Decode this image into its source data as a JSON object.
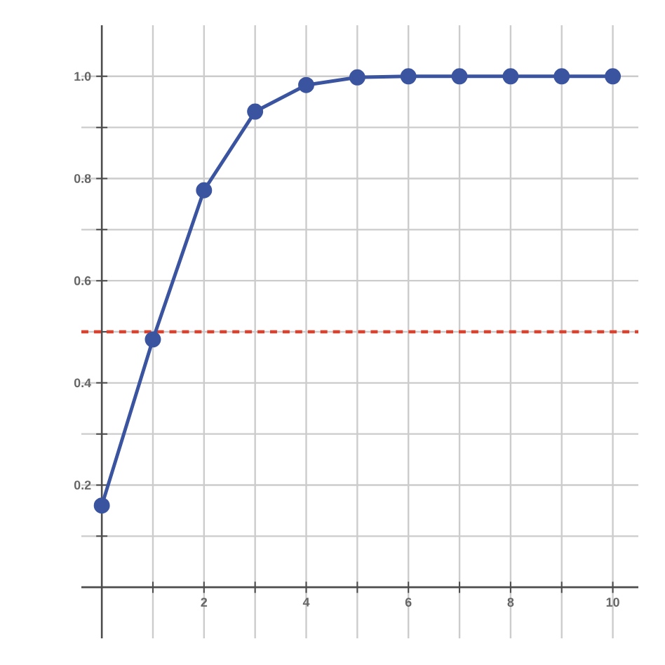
{
  "chart_data": {
    "type": "line",
    "x": [
      0,
      1,
      2,
      3,
      4,
      5,
      6,
      7,
      8,
      9,
      10
    ],
    "values": [
      0.16,
      0.485,
      0.777,
      0.931,
      0.983,
      0.998,
      1.0,
      1.0,
      1.0,
      1.0,
      1.0
    ],
    "color": "#3b54a0",
    "marker": "circle",
    "line_style": "solid",
    "grid": true,
    "xlim": [
      -0.4,
      10.5
    ],
    "ylim": [
      -0.1,
      1.1
    ],
    "xticks": [
      {
        "value": 0,
        "label": null
      },
      {
        "value": 1,
        "label": null
      },
      2,
      {
        "value": 3,
        "label": null
      },
      4,
      {
        "value": 5,
        "label": null
      },
      6,
      {
        "value": 7,
        "label": null
      },
      8,
      {
        "value": 9,
        "label": null
      },
      10
    ],
    "yticks": [
      {
        "value": 0,
        "label": null
      },
      {
        "value": 0.1,
        "label": null
      },
      {
        "value": 0.2,
        "label": "0.2"
      },
      {
        "value": 0.3,
        "label": null
      },
      {
        "value": 0.4,
        "label": "0.4"
      },
      {
        "value": 0.5,
        "label": null
      },
      {
        "value": 0.6,
        "label": "0.6"
      },
      {
        "value": 0.7,
        "label": null
      },
      {
        "value": 0.8,
        "label": "0.8"
      },
      {
        "value": 0.9,
        "label": null
      },
      {
        "value": 1.0,
        "label": "1.0"
      }
    ],
    "ref_lines": [
      {
        "axis": "y",
        "value": 0.5,
        "color": "#e0402b",
        "line_style": "dashed"
      }
    ]
  }
}
